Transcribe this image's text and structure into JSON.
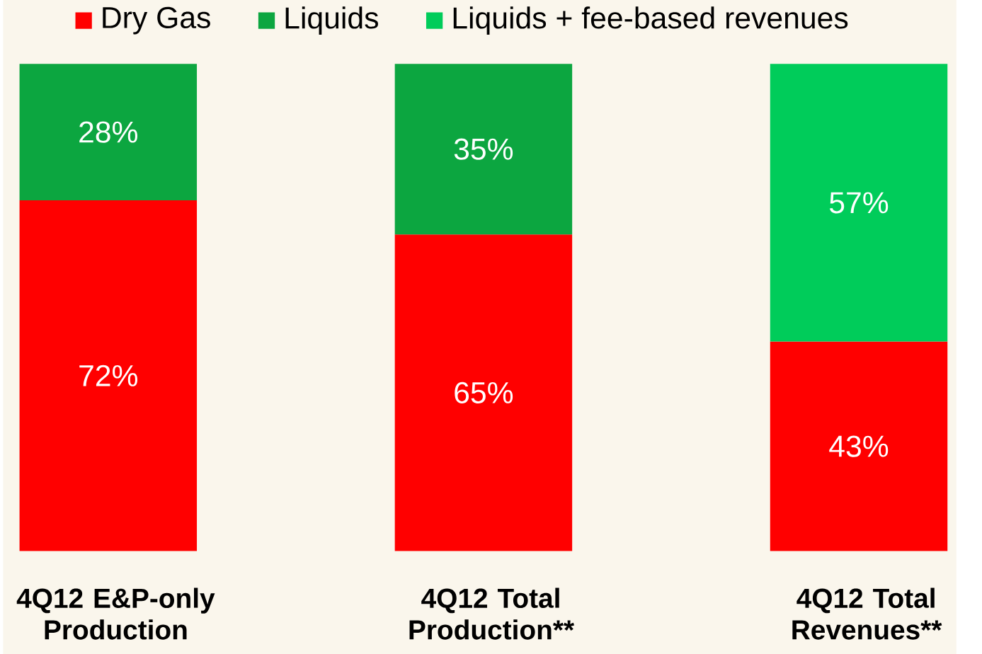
{
  "chart_data": {
    "type": "bar",
    "stacked": true,
    "categories": [
      "4Q12 E&P-only Production",
      "4Q12 Total Production**",
      "4Q12 Total Revenues**"
    ],
    "series": [
      {
        "name": "Dry Gas",
        "color": "#ff0000",
        "values": [
          72,
          65,
          43
        ],
        "value_labels": [
          "72%",
          "65%",
          "43%"
        ]
      },
      {
        "name": "Liquids",
        "color": "#0ca640",
        "values": [
          28,
          35,
          null
        ],
        "value_labels": [
          "28%",
          "35%",
          null
        ]
      },
      {
        "name": "Liquids + fee-based revenues",
        "color": "#00cc5a",
        "values": [
          null,
          null,
          57
        ],
        "value_labels": [
          null,
          null,
          "57%"
        ]
      }
    ],
    "legend": "top",
    "grid": false
  }
}
